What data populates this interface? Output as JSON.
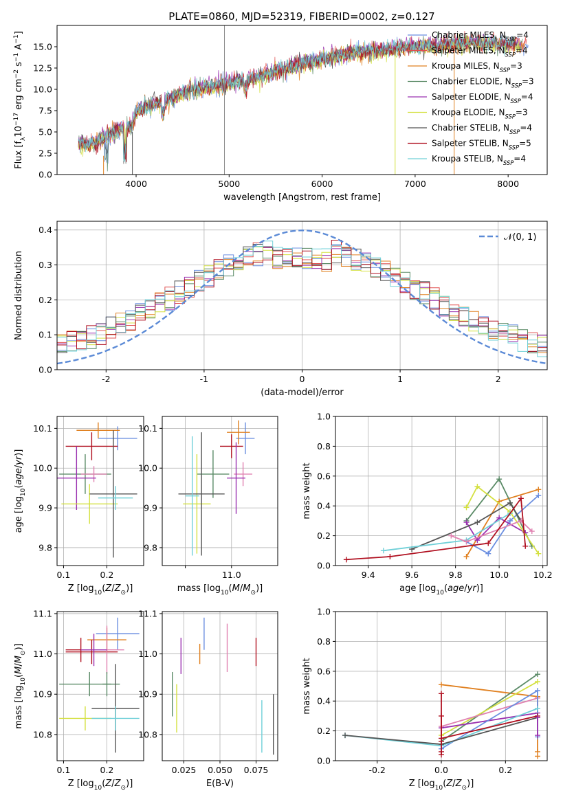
{
  "figure": {
    "title": "PLATE=0860, MJD=52319, FIBERID=0002, z=0.127"
  },
  "colors": {
    "Chabrier MILES": "#6a8ee0",
    "Salpeter MILES": "#e05050",
    "Kroupa MILES": "#e08020",
    "Chabrier ELODIE": "#5a8a66",
    "Salpeter ELODIE": "#9a30b0",
    "Kroupa ELODIE": "#d4e040",
    "Chabrier STELIB": "#555555",
    "Salpeter STELIB": "#b01020",
    "Kroupa STELIB": "#70d0d8",
    "normal": "#5b8ad6",
    "pink": "#e080b0"
  },
  "chart_data": [
    {
      "id": "spectrum",
      "type": "line",
      "xlabel": "wavelength [Angstrom, rest frame]",
      "ylabel": "Flux [f_λ10^{-17} erg cm^{-2} s^{-1} A^{-1}]",
      "xlim": [
        3150,
        8420
      ],
      "ylim": [
        0,
        17.5
      ],
      "xticks": [
        4000,
        5000,
        6000,
        7000,
        8000
      ],
      "yticks": [
        0.0,
        2.5,
        5.0,
        7.5,
        10.0,
        12.5,
        15.0
      ],
      "grid": false,
      "legend_placement": "upper-right",
      "legend": [
        {
          "label": "Chabrier MILES, N",
          "sub": "SSP",
          "suffix": "=4",
          "color": "#6a8ee0"
        },
        {
          "label": "Salpeter MILES, N",
          "sub": "SSP",
          "suffix": "=4",
          "color": "#e05050"
        },
        {
          "label": "Kroupa MILES, N",
          "sub": "SSP",
          "suffix": "=3",
          "color": "#e08020"
        },
        {
          "label": "Chabrier ELODIE, N",
          "sub": "SSP",
          "suffix": "=3",
          "color": "#5a8a66"
        },
        {
          "label": "Salpeter ELODIE, N",
          "sub": "SSP",
          "suffix": "=4",
          "color": "#9a30b0"
        },
        {
          "label": "Kroupa ELODIE, N",
          "sub": "SSP",
          "suffix": "=3",
          "color": "#d4e040"
        },
        {
          "label": "Chabrier STELIB, N",
          "sub": "SSP",
          "suffix": "=4",
          "color": "#555555"
        },
        {
          "label": "Salpeter STELIB, N",
          "sub": "SSP",
          "suffix": "=5",
          "color": "#b01020"
        },
        {
          "label": "Kroupa STELIB, N",
          "sub": "SSP",
          "suffix": "=4",
          "color": "#70d0d8"
        }
      ],
      "continuum": [
        [
          3380,
          3.8
        ],
        [
          3500,
          3.4
        ],
        [
          3600,
          4.0
        ],
        [
          3700,
          4.6
        ],
        [
          3800,
          5.2
        ],
        [
          3900,
          5.6
        ],
        [
          3950,
          5.3
        ],
        [
          4000,
          7.4
        ],
        [
          4100,
          8.0
        ],
        [
          4200,
          8.4
        ],
        [
          4300,
          8.5
        ],
        [
          4400,
          9.0
        ],
        [
          4500,
          9.6
        ],
        [
          4600,
          9.9
        ],
        [
          4700,
          10.0
        ],
        [
          4800,
          10.2
        ],
        [
          4900,
          10.4
        ],
        [
          5000,
          10.8
        ],
        [
          5200,
          11.1
        ],
        [
          5400,
          11.7
        ],
        [
          5600,
          12.4
        ],
        [
          5800,
          13.1
        ],
        [
          6000,
          13.5
        ],
        [
          6200,
          14.0
        ],
        [
          6400,
          14.3
        ],
        [
          6600,
          14.5
        ],
        [
          6800,
          14.8
        ],
        [
          7000,
          15.0
        ],
        [
          7200,
          15.1
        ],
        [
          7400,
          15.3
        ],
        [
          7600,
          15.4
        ],
        [
          7800,
          15.5
        ],
        [
          8000,
          15.3
        ],
        [
          8200,
          15.0
        ]
      ],
      "spikes": [
        {
          "x": 4950,
          "ymax": 17.5,
          "color": "#888888"
        },
        {
          "x": 6785,
          "ymax": 14.0,
          "color": "#d4e040"
        },
        {
          "x": 7420,
          "ymax": 15.5,
          "color": "#e08020"
        }
      ]
    },
    {
      "id": "residuals",
      "type": "step",
      "xlabel": "(data-model)/error",
      "ylabel": "Normed distribution",
      "xlim": [
        -2.5,
        2.5
      ],
      "ylim": [
        0,
        0.425
      ],
      "xticks": [
        -2,
        -1,
        0,
        1,
        2
      ],
      "yticks": [
        0.0,
        0.1,
        0.2,
        0.3,
        0.4
      ],
      "grid": true,
      "bin_width": 0.1,
      "legend_placement": "upper-right",
      "legend": [
        {
          "label": "𝒩(0, 1)",
          "color": "#5b8ad6",
          "style": "dashed"
        }
      ],
      "curve": {
        "mu": 0,
        "sigma": 1
      }
    },
    {
      "id": "age-vs-Z",
      "type": "errorbar",
      "xlabel": "Z [log10(Z/Z⊙)]",
      "ylabel": "age  [log10(age/yr)]",
      "xlim": [
        0.085,
        0.285
      ],
      "ylim": [
        9.755,
        10.13
      ],
      "xticks": [
        0.1,
        0.2
      ],
      "yticks": [
        9.8,
        9.9,
        10.0,
        10.1
      ],
      "grid": true,
      "points": [
        {
          "x": 0.225,
          "y": 10.075,
          "xe": 0.045,
          "ye": 0.03,
          "color": "#6a8ee0"
        },
        {
          "x": 0.18,
          "y": 10.095,
          "xe": 0.05,
          "ye": 0.02,
          "color": "#e08020"
        },
        {
          "x": 0.165,
          "y": 10.055,
          "xe": 0.06,
          "ye": 0.035,
          "color": "#b01020"
        },
        {
          "x": 0.15,
          "y": 9.985,
          "xe": 0.06,
          "ye": 0.05,
          "color": "#5a8a66"
        },
        {
          "x": 0.17,
          "y": 9.985,
          "xe": 0.03,
          "ye": 0.02,
          "color": "#e080b0"
        },
        {
          "x": 0.13,
          "y": 9.975,
          "xe": 0.045,
          "ye": 0.08,
          "color": "#9a30b0"
        },
        {
          "x": 0.16,
          "y": 9.91,
          "xe": 0.065,
          "ye": 0.05,
          "color": "#d4e040"
        },
        {
          "x": 0.215,
          "y": 9.935,
          "xe": 0.055,
          "ye": 0.16,
          "color": "#555555"
        },
        {
          "x": 0.22,
          "y": 9.925,
          "xe": 0.04,
          "ye": 0.03,
          "color": "#70d0d8"
        }
      ]
    },
    {
      "id": "age-vs-mass",
      "type": "errorbar",
      "xlabel": "mass [log10(M/M⊙)]",
      "ylabel": "",
      "xlim": [
        10.7,
        11.2
      ],
      "ylim": [
        9.755,
        10.13
      ],
      "xticks": [
        10.8,
        11.0
      ],
      "yticks": [
        9.8,
        9.9,
        10.0,
        10.1
      ],
      "tick_labels_x": [
        "",
        "11.0"
      ],
      "grid": true,
      "points": [
        {
          "x": 11.06,
          "y": 10.075,
          "xe": 0.04,
          "ye": 0.04,
          "color": "#6a8ee0"
        },
        {
          "x": 11.03,
          "y": 10.09,
          "xe": 0.05,
          "ye": 0.03,
          "color": "#e08020"
        },
        {
          "x": 11.0,
          "y": 10.055,
          "xe": 0.05,
          "ye": 0.03,
          "color": "#b01020"
        },
        {
          "x": 10.92,
          "y": 9.985,
          "xe": 0.07,
          "ye": 0.06,
          "color": "#5a8a66"
        },
        {
          "x": 11.05,
          "y": 9.985,
          "xe": 0.04,
          "ye": 0.03,
          "color": "#e080b0"
        },
        {
          "x": 11.02,
          "y": 9.975,
          "xe": 0.04,
          "ye": 0.09,
          "color": "#9a30b0"
        },
        {
          "x": 10.85,
          "y": 9.91,
          "xe": 0.06,
          "ye": 0.125,
          "color": "#d4e040"
        },
        {
          "x": 10.87,
          "y": 9.935,
          "xe": 0.1,
          "ye": 0.155,
          "color": "#555555"
        },
        {
          "x": 10.83,
          "y": 9.93,
          "xe": 0.03,
          "ye": 0.15,
          "color": "#70d0d8"
        }
      ]
    },
    {
      "id": "mass-weight-vs-age",
      "type": "line",
      "xlabel": "age  [log10(age/yr)]",
      "ylabel": "mass weight",
      "xlim": [
        9.25,
        10.22
      ],
      "ylim": [
        0,
        1
      ],
      "xticks": [
        9.4,
        9.6,
        9.8,
        10.0,
        10.2
      ],
      "yticks": [
        0.0,
        0.2,
        0.4,
        0.6,
        0.8,
        1.0
      ],
      "grid": true,
      "series": [
        {
          "color": "#6a8ee0",
          "x": [
            9.85,
            9.95,
            10.05,
            10.18
          ],
          "y": [
            0.16,
            0.08,
            0.3,
            0.47
          ]
        },
        {
          "color": "#e08020",
          "x": [
            9.85,
            10.0,
            10.18
          ],
          "y": [
            0.06,
            0.43,
            0.51
          ]
        },
        {
          "color": "#5a8a66",
          "x": [
            9.85,
            10.0,
            10.15
          ],
          "y": [
            0.3,
            0.58,
            0.13
          ]
        },
        {
          "color": "#9a30b0",
          "x": [
            9.85,
            9.9,
            10.0,
            10.12
          ],
          "y": [
            0.29,
            0.17,
            0.32,
            0.22
          ]
        },
        {
          "color": "#d4e040",
          "x": [
            9.85,
            9.9,
            10.05,
            10.18
          ],
          "y": [
            0.39,
            0.53,
            0.36,
            0.08
          ]
        },
        {
          "color": "#555555",
          "x": [
            9.6,
            9.9,
            10.05,
            10.1
          ],
          "y": [
            0.11,
            0.29,
            0.42,
            0.3
          ]
        },
        {
          "color": "#70d0d8",
          "x": [
            9.47,
            9.85,
            10.05
          ],
          "y": [
            0.1,
            0.17,
            0.35
          ]
        },
        {
          "color": "#e080b0",
          "x": [
            9.78,
            9.85,
            10.1,
            10.15
          ],
          "y": [
            0.2,
            0.16,
            0.3,
            0.23
          ]
        },
        {
          "color": "#b01020",
          "x": [
            9.3,
            9.5,
            9.95,
            10.1,
            10.12
          ],
          "y": [
            0.04,
            0.06,
            0.15,
            0.45,
            0.13
          ]
        }
      ]
    },
    {
      "id": "mass-vs-Z",
      "type": "errorbar",
      "xlabel": "Z [log10(Z/Z⊙)]",
      "ylabel": "mass [log10(M/M⊙)]",
      "xlim": [
        0.085,
        0.285
      ],
      "ylim": [
        10.735,
        11.105
      ],
      "xticks": [
        0.1,
        0.2
      ],
      "yticks": [
        10.8,
        10.9,
        11.0,
        11.1
      ],
      "grid": true,
      "points": [
        {
          "x": 0.225,
          "y": 11.05,
          "xe": 0.05,
          "ye": 0.04,
          "color": "#6a8ee0"
        },
        {
          "x": 0.2,
          "y": 11.035,
          "xe": 0.045,
          "ye": 0.03,
          "color": "#e08020"
        },
        {
          "x": 0.14,
          "y": 11.01,
          "xe": 0.035,
          "ye": 0.03,
          "color": "#b01020"
        },
        {
          "x": 0.165,
          "y": 11.005,
          "xe": 0.06,
          "ye": 0.03,
          "color": "#b01020"
        },
        {
          "x": 0.2,
          "y": 11.01,
          "xe": 0.04,
          "ye": 0.06,
          "color": "#e080b0"
        },
        {
          "x": 0.17,
          "y": 11.01,
          "xe": 0.03,
          "ye": 0.04,
          "color": "#9a30b0"
        },
        {
          "x": 0.16,
          "y": 10.925,
          "xe": 0.07,
          "ye": 0.03,
          "color": "#5a8a66"
        },
        {
          "x": 0.2,
          "y": 10.925,
          "xe": 0.01,
          "ye": 0.03,
          "color": "#5a8a66"
        },
        {
          "x": 0.22,
          "y": 10.865,
          "xe": 0.055,
          "ye": 0.11,
          "color": "#555555"
        },
        {
          "x": 0.15,
          "y": 10.84,
          "xe": 0.06,
          "ye": 0.03,
          "color": "#d4e040"
        },
        {
          "x": 0.22,
          "y": 10.84,
          "xe": 0.055,
          "ye": 0.03,
          "color": "#70d0d8"
        }
      ]
    },
    {
      "id": "mass-vs-EBV",
      "type": "errorbar",
      "xlabel": "E(B-V)",
      "ylabel": "",
      "xlim": [
        0.01,
        0.09
      ],
      "ylim": [
        10.735,
        11.105
      ],
      "xticks": [
        0.025,
        0.05,
        0.075
      ],
      "tick_labels_x": [
        "0.025",
        "0.050",
        "0.075"
      ],
      "yticks": [
        10.8,
        10.9,
        11.0,
        11.1
      ],
      "grid": true,
      "points": [
        {
          "x": 0.017,
          "y": 10.9,
          "ye": 0.055,
          "color": "#5a8a66"
        },
        {
          "x": 0.02,
          "y": 10.865,
          "ye": 0.06,
          "color": "#d4e040"
        },
        {
          "x": 0.023,
          "y": 10.995,
          "ye": 0.045,
          "color": "#9a30b0"
        },
        {
          "x": 0.036,
          "y": 11.0,
          "ye": 0.025,
          "color": "#e08020"
        },
        {
          "x": 0.039,
          "y": 11.05,
          "ye": 0.04,
          "color": "#6a8ee0"
        },
        {
          "x": 0.055,
          "y": 11.015,
          "ye": 0.06,
          "color": "#e080b0"
        },
        {
          "x": 0.075,
          "y": 11.005,
          "ye": 0.035,
          "color": "#b01020"
        },
        {
          "x": 0.079,
          "y": 10.82,
          "ye": 0.065,
          "color": "#70d0d8"
        },
        {
          "x": 0.087,
          "y": 10.825,
          "ye": 0.075,
          "color": "#555555"
        }
      ]
    },
    {
      "id": "mass-weight-vs-Z",
      "type": "line",
      "xlabel": "Z [log10(Z/Z⊙)]",
      "ylabel": "mass weight",
      "xlim": [
        -0.33,
        0.33
      ],
      "ylim": [
        0,
        1
      ],
      "xticks": [
        -0.2,
        0.0,
        0.2
      ],
      "yticks": [
        0.0,
        0.2,
        0.4,
        0.6,
        0.8,
        1.0
      ],
      "grid": true,
      "series": [
        {
          "color": "#e08020",
          "x": [
            0.0,
            0.3,
            0.3
          ],
          "y": [
            0.51,
            0.43,
            0.06
          ]
        },
        {
          "color": "#5a8a66",
          "x": [
            0.0,
            0.3
          ],
          "y": [
            0.13,
            0.58
          ]
        },
        {
          "color": "#d4e040",
          "x": [
            0.0,
            0.3
          ],
          "y": [
            0.17,
            0.53
          ]
        },
        {
          "color": "#e080b0",
          "x": [
            0.0,
            0.3
          ],
          "y": [
            0.23,
            0.42
          ]
        },
        {
          "color": "#9a30b0",
          "x": [
            0.0,
            0.3
          ],
          "y": [
            0.22,
            0.32
          ]
        },
        {
          "color": "#6a8ee0",
          "x": [
            0.0,
            0.3,
            0.3
          ],
          "y": [
            0.08,
            0.47,
            0.16
          ]
        },
        {
          "color": "#70d0d8",
          "x": [
            -0.3,
            0.0,
            0.3
          ],
          "y": [
            0.17,
            0.1,
            0.35
          ]
        },
        {
          "color": "#555555",
          "x": [
            -0.3,
            0.0,
            0.3
          ],
          "y": [
            0.17,
            0.11,
            0.29
          ]
        },
        {
          "color": "#b01020",
          "x": [
            0.0,
            0.0,
            0.3
          ],
          "y": [
            0.45,
            0.15,
            0.3
          ]
        }
      ],
      "extra_markers": [
        {
          "color": "#b01020",
          "x": 0.0,
          "y": [
            0.04,
            0.06,
            0.13,
            0.3
          ]
        },
        {
          "color": "#9a30b0",
          "x": 0.3,
          "y": [
            0.17,
            0.29
          ]
        },
        {
          "color": "#e08020",
          "x": 0.3,
          "y": [
            0.03
          ]
        }
      ]
    }
  ]
}
